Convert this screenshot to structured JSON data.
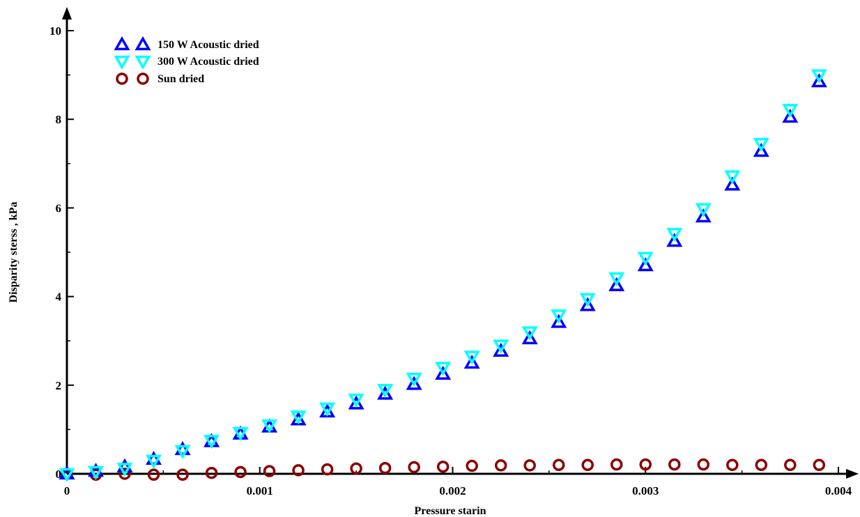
{
  "chart_data": {
    "type": "scatter",
    "xlabel": "Pressure starin",
    "ylabel": "Disparity sterss ,  kPa",
    "xlim": [
      0,
      0.004
    ],
    "ylim": [
      0,
      10
    ],
    "x_ticks": [
      {
        "value": 0,
        "label": "0"
      },
      {
        "value": 0.001,
        "label": "0.001"
      },
      {
        "value": 0.002,
        "label": "0.002"
      },
      {
        "value": 0.003,
        "label": "0.003"
      },
      {
        "value": 0.004,
        "label": "0.004"
      }
    ],
    "y_ticks": [
      {
        "value": 0,
        "label": "0"
      },
      {
        "value": 2,
        "label": "2"
      },
      {
        "value": 4,
        "label": "4"
      },
      {
        "value": 6,
        "label": "6"
      },
      {
        "value": 8,
        "label": "8"
      },
      {
        "value": 10,
        "label": "10"
      }
    ],
    "grid": false,
    "legend_position": "top-left",
    "x": [
      0,
      0.00015,
      0.0003,
      0.00045,
      0.0006,
      0.00075,
      0.0009,
      0.00105,
      0.0012,
      0.00135,
      0.0015,
      0.00165,
      0.0018,
      0.00195,
      0.0021,
      0.00225,
      0.0024,
      0.00255,
      0.0027,
      0.00285,
      0.003,
      0.00315,
      0.0033,
      0.00345,
      0.0036,
      0.00375,
      0.0039
    ],
    "series": [
      {
        "name": "150  W Acoustic dried",
        "marker": "triangle-up",
        "color": "#0000ff",
        "values": [
          0,
          0.06,
          0.16,
          0.33,
          0.55,
          0.73,
          0.9,
          1.06,
          1.22,
          1.4,
          1.58,
          1.8,
          2.02,
          2.25,
          2.5,
          2.77,
          3.05,
          3.42,
          3.8,
          4.25,
          4.7,
          5.25,
          5.8,
          6.52,
          7.28,
          8.05,
          8.85
        ]
      },
      {
        "name": "300  W Acoustic dried",
        "marker": "triangle-down",
        "color": "#00ffff",
        "values": [
          0,
          0.05,
          0.12,
          0.3,
          0.52,
          0.75,
          0.93,
          1.1,
          1.3,
          1.48,
          1.68,
          1.9,
          2.15,
          2.4,
          2.65,
          2.9,
          3.2,
          3.58,
          3.95,
          4.42,
          4.88,
          5.42,
          5.98,
          6.72,
          7.45,
          8.22,
          9.0
        ]
      },
      {
        "name": "Sun dried",
        "marker": "circle",
        "color": "#8b0000",
        "values": [
          0,
          -0.02,
          0.0,
          -0.02,
          -0.02,
          0.02,
          0.04,
          0.06,
          0.08,
          0.1,
          0.12,
          0.13,
          0.15,
          0.16,
          0.18,
          0.19,
          0.19,
          0.2,
          0.2,
          0.21,
          0.21,
          0.21,
          0.21,
          0.2,
          0.2,
          0.2,
          0.2
        ]
      }
    ]
  }
}
